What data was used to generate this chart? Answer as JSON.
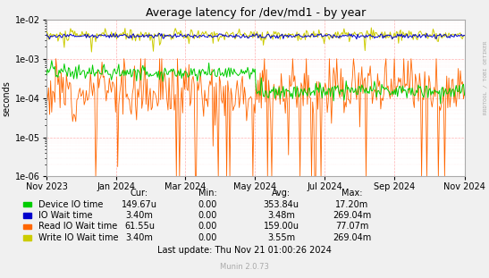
{
  "title": "Average latency for /dev/md1 - by year",
  "ylabel": "seconds",
  "background_color": "#f0f0f0",
  "plot_bg_color": "#ffffff",
  "legend_entries": [
    {
      "label": "Device IO time",
      "color": "#00cc00",
      "cur": "149.67u",
      "min": "0.00",
      "avg": "353.84u",
      "max": "17.20m"
    },
    {
      "label": "IO Wait time",
      "color": "#0000cc",
      "cur": "3.40m",
      "min": "0.00",
      "avg": "3.48m",
      "max": "269.04m"
    },
    {
      "label": "Read IO Wait time",
      "color": "#ff6600",
      "cur": "61.55u",
      "min": "0.00",
      "avg": "159.00u",
      "max": "77.07m"
    },
    {
      "label": "Write IO Wait time",
      "color": "#cccc00",
      "cur": "3.40m",
      "min": "0.00",
      "avg": "3.55m",
      "max": "269.04m"
    }
  ],
  "footer": "Last update: Thu Nov 21 01:00:26 2024",
  "watermark": "Munin 2.0.73",
  "side_label": "RRDTOOL / TOBI OETIKER",
  "x_tick_labels": [
    "Nov 2023",
    "Jan 2024",
    "Mar 2024",
    "May 2024",
    "Jul 2024",
    "Sep 2024",
    "Nov 2024"
  ],
  "x_tick_positions": [
    0,
    61,
    121,
    182,
    243,
    304,
    365
  ],
  "num_points": 400
}
